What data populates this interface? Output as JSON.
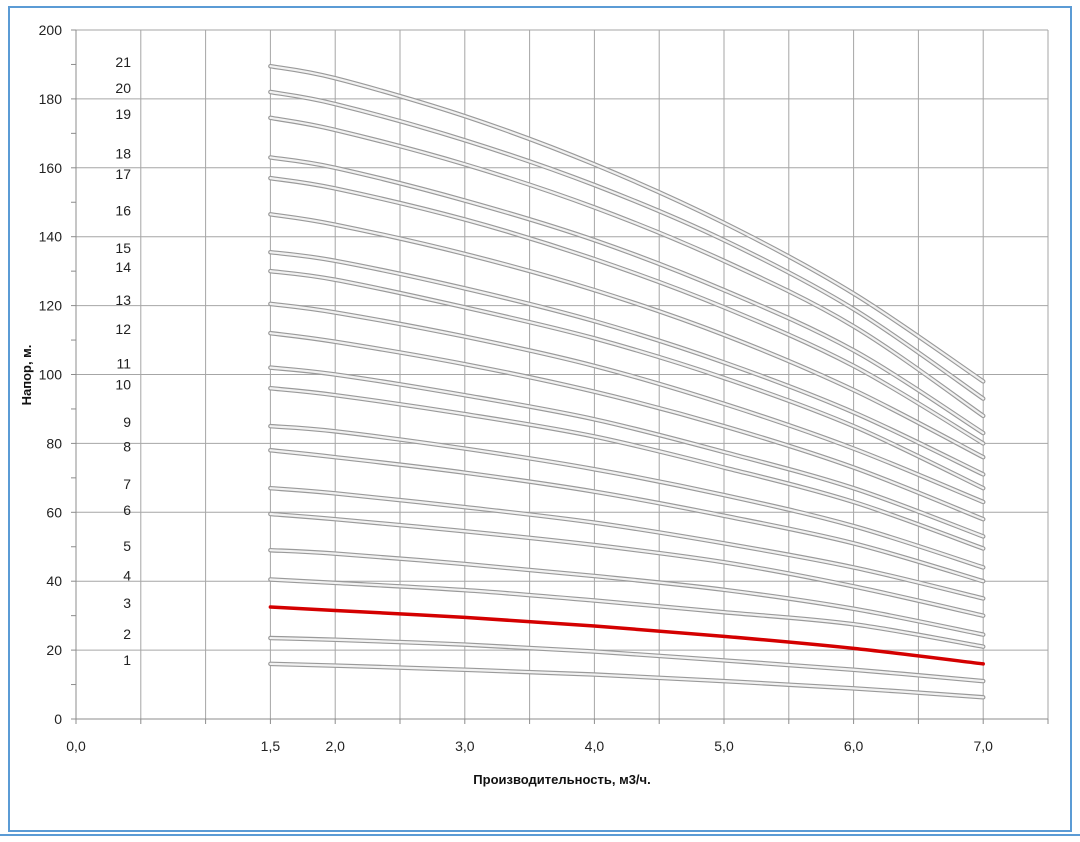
{
  "chart_data": {
    "type": "line",
    "xlabel": "Производительность, м3/ч.",
    "ylabel": "Напор, м.",
    "xlim": [
      0,
      7.5
    ],
    "ylim": [
      0,
      200
    ],
    "x_ticks": [
      "0,0",
      "1,5",
      "2,0",
      "3,0",
      "4,0",
      "5,0",
      "6,0",
      "7,0"
    ],
    "x_tick_values": [
      0,
      1.5,
      2,
      3,
      4,
      5,
      6,
      7
    ],
    "y_ticks": [
      "0",
      "20",
      "40",
      "60",
      "80",
      "100",
      "120",
      "140",
      "160",
      "180",
      "200"
    ],
    "y_tick_values": [
      0,
      20,
      40,
      60,
      80,
      100,
      120,
      140,
      160,
      180,
      200
    ],
    "grid": true,
    "x": [
      1.5,
      2.0,
      3.0,
      4.0,
      5.0,
      6.0,
      7.0
    ],
    "highlight_color": "#d40000",
    "curve_color": "#d2d2d2",
    "series": [
      {
        "name": "1",
        "values": [
          16.0,
          15.5,
          14.3,
          12.9,
          11.0,
          8.9,
          6.3
        ]
      },
      {
        "name": "2",
        "values": [
          23.5,
          23.0,
          21.6,
          19.6,
          17.0,
          14.3,
          11.0
        ]
      },
      {
        "name": "3",
        "values": [
          32.5,
          31.5,
          29.5,
          27.0,
          24.0,
          20.5,
          16.0
        ],
        "highlight": true
      },
      {
        "name": "4",
        "values": [
          40.5,
          39.5,
          37.4,
          34.4,
          31.0,
          27.5,
          21.0
        ]
      },
      {
        "name": "5",
        "values": [
          49.0,
          48.0,
          45.0,
          41.5,
          37.5,
          32.0,
          24.5
        ]
      },
      {
        "name": "6",
        "values": [
          59.5,
          58.0,
          54.5,
          50.5,
          45.5,
          38.5,
          30.0
        ]
      },
      {
        "name": "7",
        "values": [
          67.0,
          65.5,
          61.5,
          57.0,
          51.0,
          44.0,
          35.0
        ]
      },
      {
        "name": "8",
        "values": [
          78.0,
          76.0,
          71.5,
          66.0,
          59.0,
          51.0,
          40.0
        ]
      },
      {
        "name": "9",
        "values": [
          85.0,
          83.5,
          78.5,
          72.5,
          65.0,
          56.0,
          44.0
        ]
      },
      {
        "name": "10",
        "values": [
          96.0,
          94.0,
          88.5,
          82.0,
          73.0,
          63.0,
          49.5
        ]
      },
      {
        "name": "11",
        "values": [
          102.0,
          100.0,
          94.0,
          87.0,
          77.5,
          67.0,
          53.0
        ]
      },
      {
        "name": "12",
        "values": [
          112.0,
          109.5,
          103.0,
          95.0,
          85.0,
          73.0,
          58.0
        ]
      },
      {
        "name": "13",
        "values": [
          120.5,
          118.0,
          111.0,
          102.5,
          91.5,
          78.5,
          63.0
        ]
      },
      {
        "name": "14",
        "values": [
          130.0,
          127.5,
          119.5,
          110.5,
          99.0,
          85.0,
          67.0
        ]
      },
      {
        "name": "15",
        "values": [
          135.5,
          133.0,
          125.0,
          115.5,
          103.5,
          89.0,
          71.0
        ]
      },
      {
        "name": "16",
        "values": [
          146.5,
          143.5,
          135.0,
          124.5,
          111.5,
          95.5,
          76.0
        ]
      },
      {
        "name": "17",
        "values": [
          157.0,
          154.0,
          145.0,
          133.5,
          119.5,
          102.5,
          80.0
        ]
      },
      {
        "name": "18",
        "values": [
          163.0,
          160.0,
          150.5,
          139.0,
          124.5,
          107.0,
          83.0
        ]
      },
      {
        "name": "19",
        "values": [
          174.5,
          171.0,
          161.0,
          148.5,
          133.0,
          114.0,
          88.0
        ]
      },
      {
        "name": "20",
        "values": [
          182.0,
          178.5,
          168.0,
          155.0,
          139.0,
          119.0,
          93.0
        ]
      },
      {
        "name": "21",
        "values": [
          189.5,
          186.0,
          175.0,
          161.0,
          144.0,
          123.5,
          98.0
        ]
      }
    ]
  }
}
